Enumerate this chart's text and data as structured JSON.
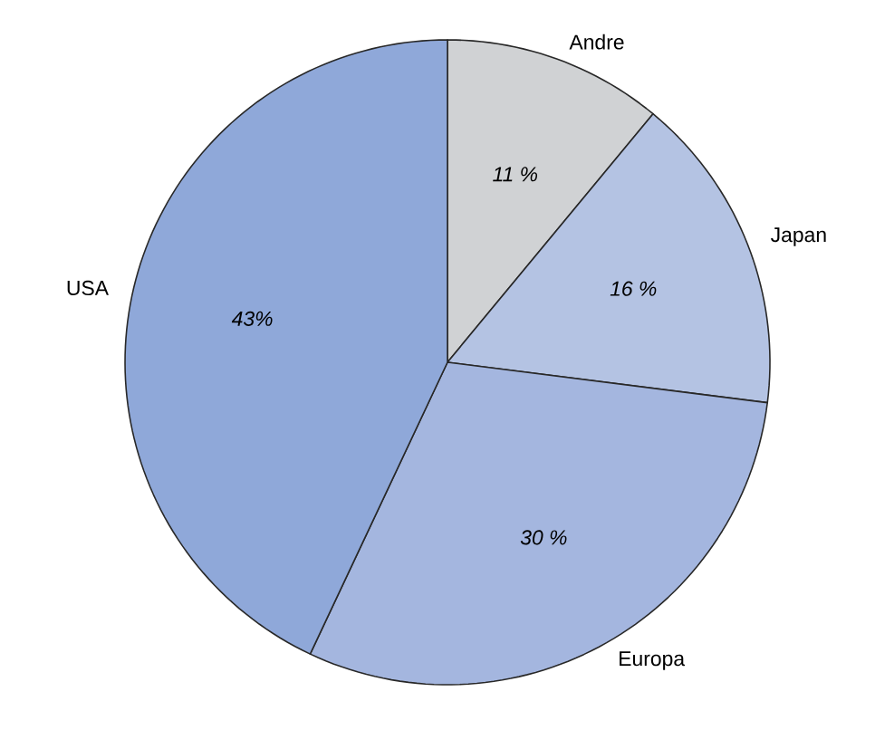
{
  "chart_data": {
    "type": "pie",
    "categories": [
      "Andre",
      "Japan",
      "Europa",
      "USA"
    ],
    "values": [
      11,
      16,
      30,
      43
    ],
    "value_labels": [
      "11 %",
      "16 %",
      "30 %",
      "43%"
    ],
    "colors": [
      "#d0d2d4",
      "#b4c3e3",
      "#a4b6df",
      "#8fa8d9"
    ]
  }
}
